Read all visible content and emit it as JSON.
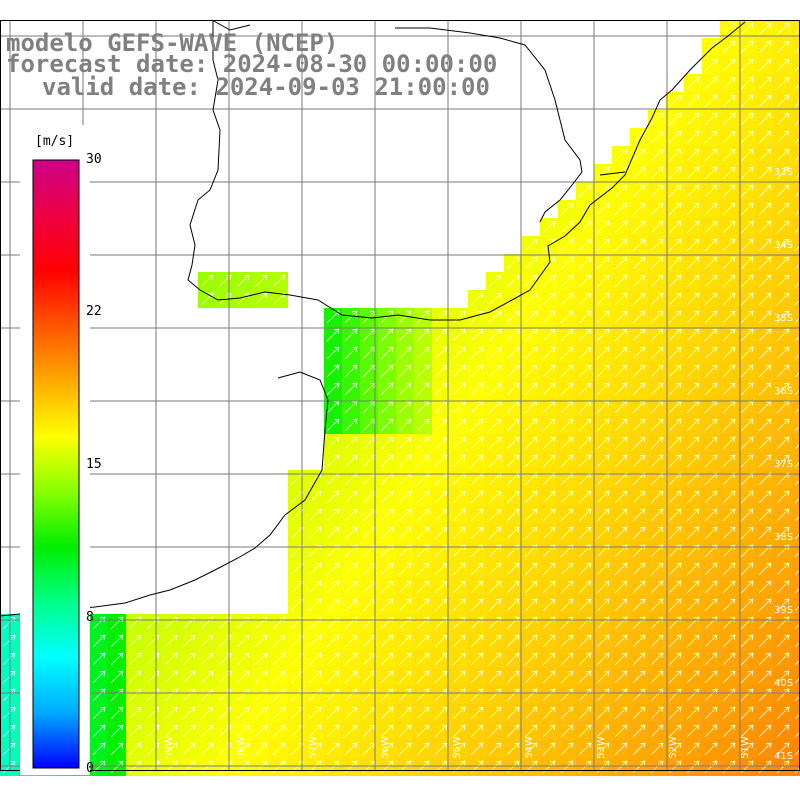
{
  "title": {
    "line1": "modelo GEFS-WAVE (NCEP)",
    "line2": "forecast date: 2024-08-30 00:00:00",
    "line3": "valid date: 2024-09-03 21:00:00"
  },
  "colorbar": {
    "unit": "[m/s]",
    "ticks": [
      "30",
      "22",
      "15",
      "8",
      "0"
    ],
    "range": [
      0,
      30
    ],
    "colors": [
      "#0000ff",
      "#00aaff",
      "#00ffff",
      "#00ff88",
      "#00ee00",
      "#88ff00",
      "#ffff00",
      "#ffaa00",
      "#ff5500",
      "#ff0000",
      "#ee0044",
      "#cc0088"
    ]
  },
  "map": {
    "land_color": "#ffffff",
    "grid_color": "#7a7a7a",
    "coast_color": "#000000",
    "arrow_color": "#ffffff",
    "arrow_direction": "north-east",
    "lat_labels": [
      "33S",
      "34S",
      "35S",
      "36S",
      "37S",
      "38S",
      "39S",
      "40S",
      "41S"
    ],
    "lon_labels": [
      "59W",
      "58W",
      "57W",
      "56W",
      "55W",
      "54W",
      "53W",
      "52W",
      "51W"
    ]
  }
}
